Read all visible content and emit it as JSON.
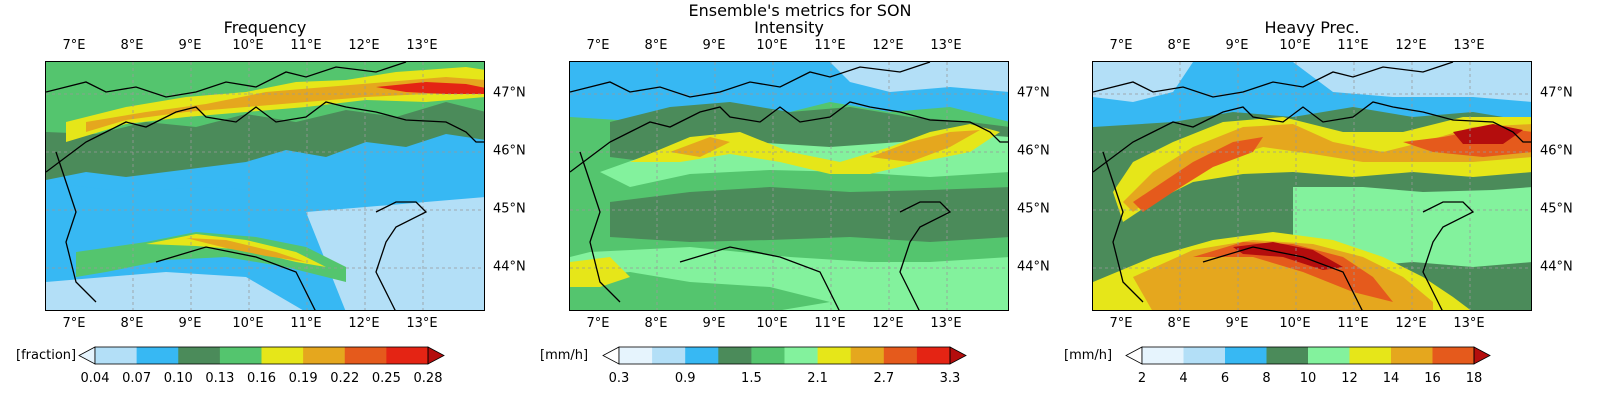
{
  "suptitle": "Ensemble's metrics for SON",
  "lon_labels": [
    "7°E",
    "8°E",
    "9°E",
    "10°E",
    "11°E",
    "12°E",
    "13°E"
  ],
  "lat_labels": [
    "47°N",
    "46°N",
    "45°N",
    "44°N"
  ],
  "panels": [
    {
      "title": "Frequency",
      "unit": "[fraction]",
      "ticks": [
        "0.04",
        "0.07",
        "0.10",
        "0.13",
        "0.16",
        "0.19",
        "0.22",
        "0.25",
        "0.28"
      ],
      "tick_positions": [
        0,
        1,
        2,
        3,
        4,
        5,
        6,
        7,
        8
      ],
      "n_bins": 8,
      "colors": [
        "#b3dff7",
        "#37b8f3",
        "#4b8b5a",
        "#54c56e",
        "#e6e619",
        "#e5a71e",
        "#e55a1c",
        "#e42414"
      ],
      "over_color": "#b40d0d",
      "under_color": "#e6f4fd"
    },
    {
      "title": "Intensity",
      "unit": "[mm/h]",
      "ticks": [
        "0.3",
        "0.9",
        "1.5",
        "2.1",
        "2.7",
        "3.3"
      ],
      "tick_positions": [
        0,
        2,
        4,
        6,
        8,
        10
      ],
      "n_bins": 10,
      "colors": [
        "#e6f4fd",
        "#b3dff7",
        "#37b8f3",
        "#4b8b5a",
        "#54c56e",
        "#83f29d",
        "#e6e619",
        "#e5a71e",
        "#e55a1c",
        "#e42414"
      ],
      "over_color": "#b40d0d",
      "under_color": "#ffffff"
    },
    {
      "title": "Heavy Prec.",
      "unit": "[mm/h]",
      "ticks": [
        "2",
        "4",
        "6",
        "8",
        "10",
        "12",
        "14",
        "16",
        "18"
      ],
      "tick_positions": [
        0,
        1,
        2,
        3,
        4,
        5,
        6,
        7,
        8
      ],
      "n_bins": 8,
      "colors": [
        "#e6f4fd",
        "#b3dff7",
        "#37b8f3",
        "#4b8b5a",
        "#83f29d",
        "#e6e619",
        "#e5a71e",
        "#e55a1c"
      ],
      "over_color": "#b40d0d",
      "under_color": "#ffffff"
    }
  ]
}
